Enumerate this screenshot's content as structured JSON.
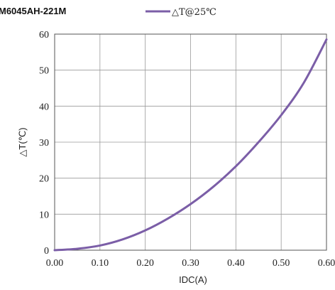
{
  "chart_data": {
    "type": "line",
    "title": "M6045AH-221M",
    "xlabel": "IDC(A)",
    "ylabel": "△T(℃)",
    "xlim": [
      0,
      0.6
    ],
    "ylim": [
      0,
      60
    ],
    "x_ticks": [
      "0.00",
      "0.10",
      "0.20",
      "0.30",
      "0.40",
      "0.50",
      "0.60"
    ],
    "y_ticks": [
      "0",
      "10",
      "20",
      "30",
      "40",
      "50",
      "60"
    ],
    "grid": true,
    "legend_position": "top-center",
    "series": [
      {
        "name": "△T@25℃",
        "color": "#7b5ea7",
        "x": [
          0.0,
          0.05,
          0.1,
          0.15,
          0.2,
          0.25,
          0.3,
          0.35,
          0.4,
          0.45,
          0.5,
          0.55,
          0.6
        ],
        "y": [
          0.0,
          0.4,
          1.3,
          3.0,
          5.5,
          8.8,
          12.8,
          17.6,
          23.3,
          30.0,
          37.5,
          46.5,
          58.5
        ]
      }
    ]
  }
}
